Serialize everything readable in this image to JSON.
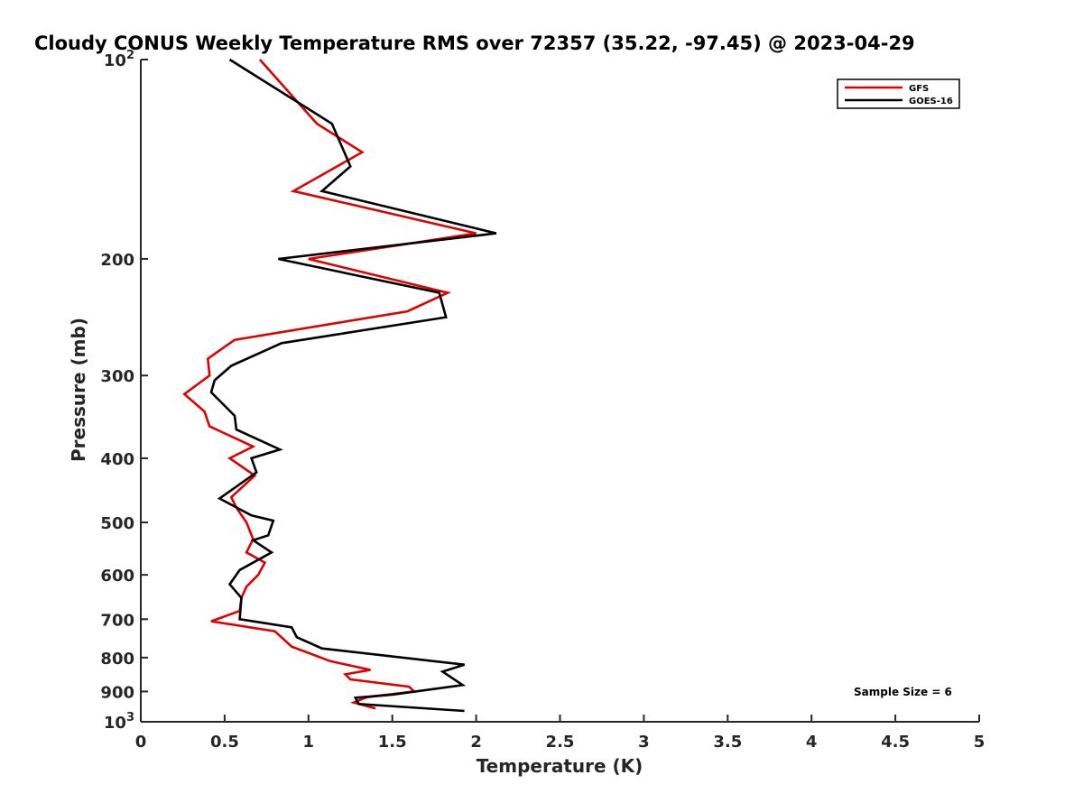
{
  "chart_data": {
    "type": "line",
    "title": "Cloudy CONUS Weekly Temperature RMS over 72357 (35.22, -97.45) @ 2023-04-29",
    "xlabel": "Temperature (K)",
    "ylabel": "Pressure (mb)",
    "xlim": [
      0,
      5
    ],
    "ylim": [
      1000,
      100
    ],
    "yscale": "log",
    "y_reversed": true,
    "x_ticks": [
      "0",
      "0.5",
      "1",
      "1.5",
      "2",
      "2.5",
      "3",
      "3.5",
      "4",
      "4.5",
      "5"
    ],
    "y_tick_values": [
      100,
      200,
      300,
      400,
      500,
      600,
      700,
      800,
      900,
      1000
    ],
    "y_tick_labels": [
      {
        "base": "10",
        "exp": "2"
      },
      {
        "base": "200",
        "exp": ""
      },
      {
        "base": "300",
        "exp": ""
      },
      {
        "base": "400",
        "exp": ""
      },
      {
        "base": "500",
        "exp": ""
      },
      {
        "base": "600",
        "exp": ""
      },
      {
        "base": "700",
        "exp": ""
      },
      {
        "base": "800",
        "exp": ""
      },
      {
        "base": "900",
        "exp": ""
      },
      {
        "base": "10",
        "exp": "3"
      }
    ],
    "grid": false,
    "legend_position": "top-right",
    "annotation": "Sample Size = 6",
    "series": [
      {
        "name": "GFS",
        "color": "#e00000",
        "points": [
          [
            0.71,
            100
          ],
          [
            1.05,
            125
          ],
          [
            1.32,
            138
          ],
          [
            0.91,
            158
          ],
          [
            2.0,
            183
          ],
          [
            1.0,
            200
          ],
          [
            1.83,
            225
          ],
          [
            1.59,
            240
          ],
          [
            0.56,
            265
          ],
          [
            0.4,
            283
          ],
          [
            0.41,
            300
          ],
          [
            0.26,
            320
          ],
          [
            0.38,
            340
          ],
          [
            0.41,
            358
          ],
          [
            0.67,
            384
          ],
          [
            0.53,
            400
          ],
          [
            0.68,
            425
          ],
          [
            0.54,
            458
          ],
          [
            0.57,
            475
          ],
          [
            0.63,
            500
          ],
          [
            0.67,
            530
          ],
          [
            0.63,
            555
          ],
          [
            0.74,
            575
          ],
          [
            0.7,
            600
          ],
          [
            0.63,
            625
          ],
          [
            0.6,
            650
          ],
          [
            0.59,
            680
          ],
          [
            0.42,
            705
          ],
          [
            0.8,
            730
          ],
          [
            0.9,
            770
          ],
          [
            1.13,
            810
          ],
          [
            1.37,
            835
          ],
          [
            1.22,
            848
          ],
          [
            1.25,
            863
          ],
          [
            1.6,
            885
          ],
          [
            1.63,
            900
          ],
          [
            1.35,
            918
          ],
          [
            1.27,
            935
          ],
          [
            1.4,
            955
          ]
        ]
      },
      {
        "name": "GOES-16",
        "color": "#000000",
        "points": [
          [
            0.53,
            100
          ],
          [
            1.14,
            125
          ],
          [
            1.25,
            145
          ],
          [
            1.08,
            158
          ],
          [
            2.12,
            183
          ],
          [
            0.82,
            200
          ],
          [
            1.78,
            225
          ],
          [
            1.82,
            245
          ],
          [
            0.84,
            268
          ],
          [
            0.54,
            290
          ],
          [
            0.44,
            305
          ],
          [
            0.42,
            318
          ],
          [
            0.56,
            345
          ],
          [
            0.57,
            362
          ],
          [
            0.83,
            388
          ],
          [
            0.66,
            400
          ],
          [
            0.69,
            420
          ],
          [
            0.47,
            460
          ],
          [
            0.66,
            488
          ],
          [
            0.79,
            497
          ],
          [
            0.76,
            523
          ],
          [
            0.67,
            532
          ],
          [
            0.78,
            555
          ],
          [
            0.59,
            590
          ],
          [
            0.53,
            620
          ],
          [
            0.6,
            650
          ],
          [
            0.59,
            700
          ],
          [
            0.9,
            720
          ],
          [
            0.93,
            745
          ],
          [
            1.08,
            775
          ],
          [
            1.93,
            820
          ],
          [
            1.8,
            840
          ],
          [
            1.92,
            880
          ],
          [
            1.5,
            910
          ],
          [
            1.28,
            920
          ],
          [
            1.3,
            940
          ],
          [
            1.93,
            963
          ]
        ]
      }
    ]
  }
}
